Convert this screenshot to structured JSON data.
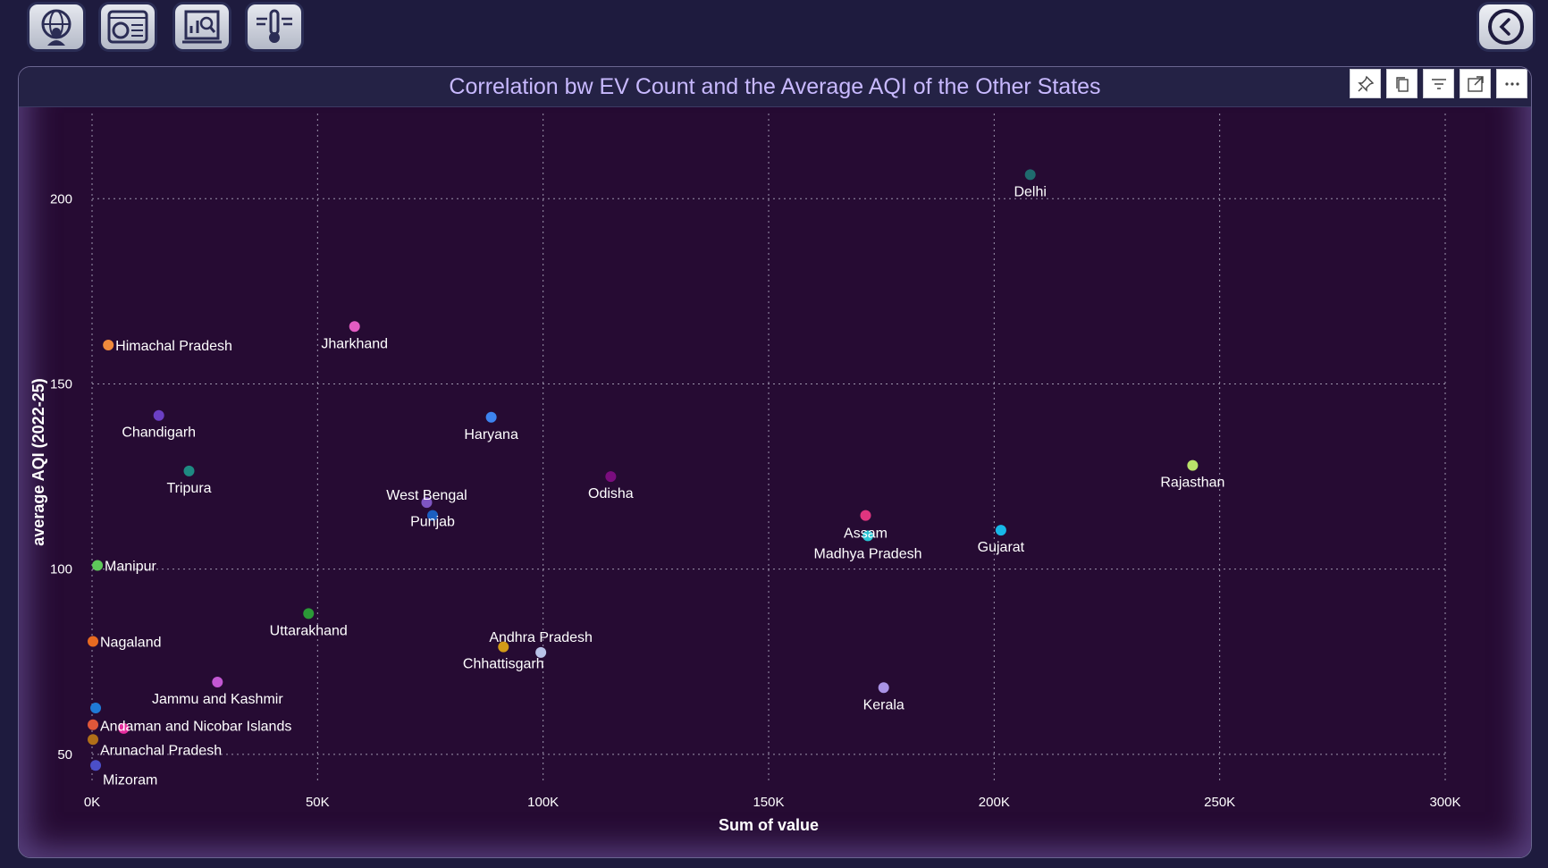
{
  "nav": {
    "buttons": [
      {
        "name": "globe-person-icon"
      },
      {
        "name": "dashboard-window-icon"
      },
      {
        "name": "report-analysis-icon"
      },
      {
        "name": "thermometer-wind-icon"
      }
    ],
    "back": {
      "name": "back-arrow-icon"
    }
  },
  "visual": {
    "tools": [
      "pin-icon",
      "copy-icon",
      "filter-icon",
      "focus-mode-icon",
      "more-options-icon"
    ]
  },
  "colors": {
    "page_bg": "#1e1b3e",
    "plot_bg": "#260b33",
    "title": "#c8b9ff",
    "grid": "#cfcfe0"
  },
  "chart_data": {
    "type": "scatter",
    "title": "Correlation bw EV Count and the Average AQI of the Other States",
    "xlabel": "Sum of value",
    "ylabel": "average AQI (2022-25)",
    "xlim": [
      0,
      300000
    ],
    "ylim": [
      42,
      223
    ],
    "x_ticks": [
      0,
      50000,
      100000,
      150000,
      200000,
      250000,
      300000
    ],
    "x_tick_labels": [
      "0K",
      "50K",
      "100K",
      "150K",
      "200K",
      "250K",
      "300K"
    ],
    "y_ticks": [
      50,
      100,
      150,
      200
    ],
    "y_tick_labels": [
      "50",
      "100",
      "150",
      "200"
    ],
    "grid": true,
    "points": [
      {
        "label": "Delhi",
        "x": 208000,
        "y": 206.5,
        "color": "#1f6b6e"
      },
      {
        "label": "Himachal Pradesh",
        "x": 3600,
        "y": 160.5,
        "color": "#f08a3c"
      },
      {
        "label": "Jharkhand",
        "x": 58200,
        "y": 165.5,
        "color": "#e25cc2"
      },
      {
        "label": "Chandigarh",
        "x": 14800,
        "y": 141.5,
        "color": "#6b3fc4"
      },
      {
        "label": "Haryana",
        "x": 88500,
        "y": 141,
        "color": "#3d84f0"
      },
      {
        "label": "Tripura",
        "x": 21500,
        "y": 126.5,
        "color": "#1e8a82"
      },
      {
        "label": "Odisha",
        "x": 115000,
        "y": 125,
        "color": "#7a0d7e"
      },
      {
        "label": "Rajasthan",
        "x": 244000,
        "y": 128,
        "color": "#b9e16a"
      },
      {
        "label": "West Bengal",
        "x": 74200,
        "y": 118,
        "color": "#7e55c2"
      },
      {
        "label": "Punjab",
        "x": 75500,
        "y": 114.5,
        "color": "#1b5ec0"
      },
      {
        "label": "Assam",
        "x": 171500,
        "y": 114.5,
        "color": "#e0357f"
      },
      {
        "label": "Madhya Pradesh",
        "x": 172000,
        "y": 109,
        "color": "#28c5d3"
      },
      {
        "label": "Gujarat",
        "x": 201500,
        "y": 110.5,
        "color": "#17b8e8"
      },
      {
        "label": "Manipur",
        "x": 1200,
        "y": 101,
        "color": "#5ec85a"
      },
      {
        "label": "Uttarakhand",
        "x": 48000,
        "y": 88,
        "color": "#2b9a37"
      },
      {
        "label": "Nagaland",
        "x": 200,
        "y": 80.5,
        "color": "#e86a21"
      },
      {
        "label": "Andhra Pradesh",
        "x": 99500,
        "y": 77.5,
        "color": "#b9c3e8"
      },
      {
        "label": "Chhattisgarh",
        "x": 91200,
        "y": 79,
        "color": "#d39b17"
      },
      {
        "label": "Jammu and Kashmir",
        "x": 27800,
        "y": 69.5,
        "color": "#c257d2"
      },
      {
        "label": "Kerala",
        "x": 175500,
        "y": 68,
        "color": "#a993e6"
      },
      {
        "label": "",
        "x": 800,
        "y": 62.5,
        "color": "#1f7ad6"
      },
      {
        "label": "Andaman and Nicobar Islands",
        "x": 200,
        "y": 58,
        "color": "#e0573a"
      },
      {
        "label": "",
        "x": 7000,
        "y": 57,
        "color": "#e52c9d"
      },
      {
        "label": "Arunachal Pradesh",
        "x": 200,
        "y": 54,
        "color": "#b06f18"
      },
      {
        "label": "Mizoram",
        "x": 800,
        "y": 47,
        "color": "#4b4fc8"
      }
    ]
  }
}
